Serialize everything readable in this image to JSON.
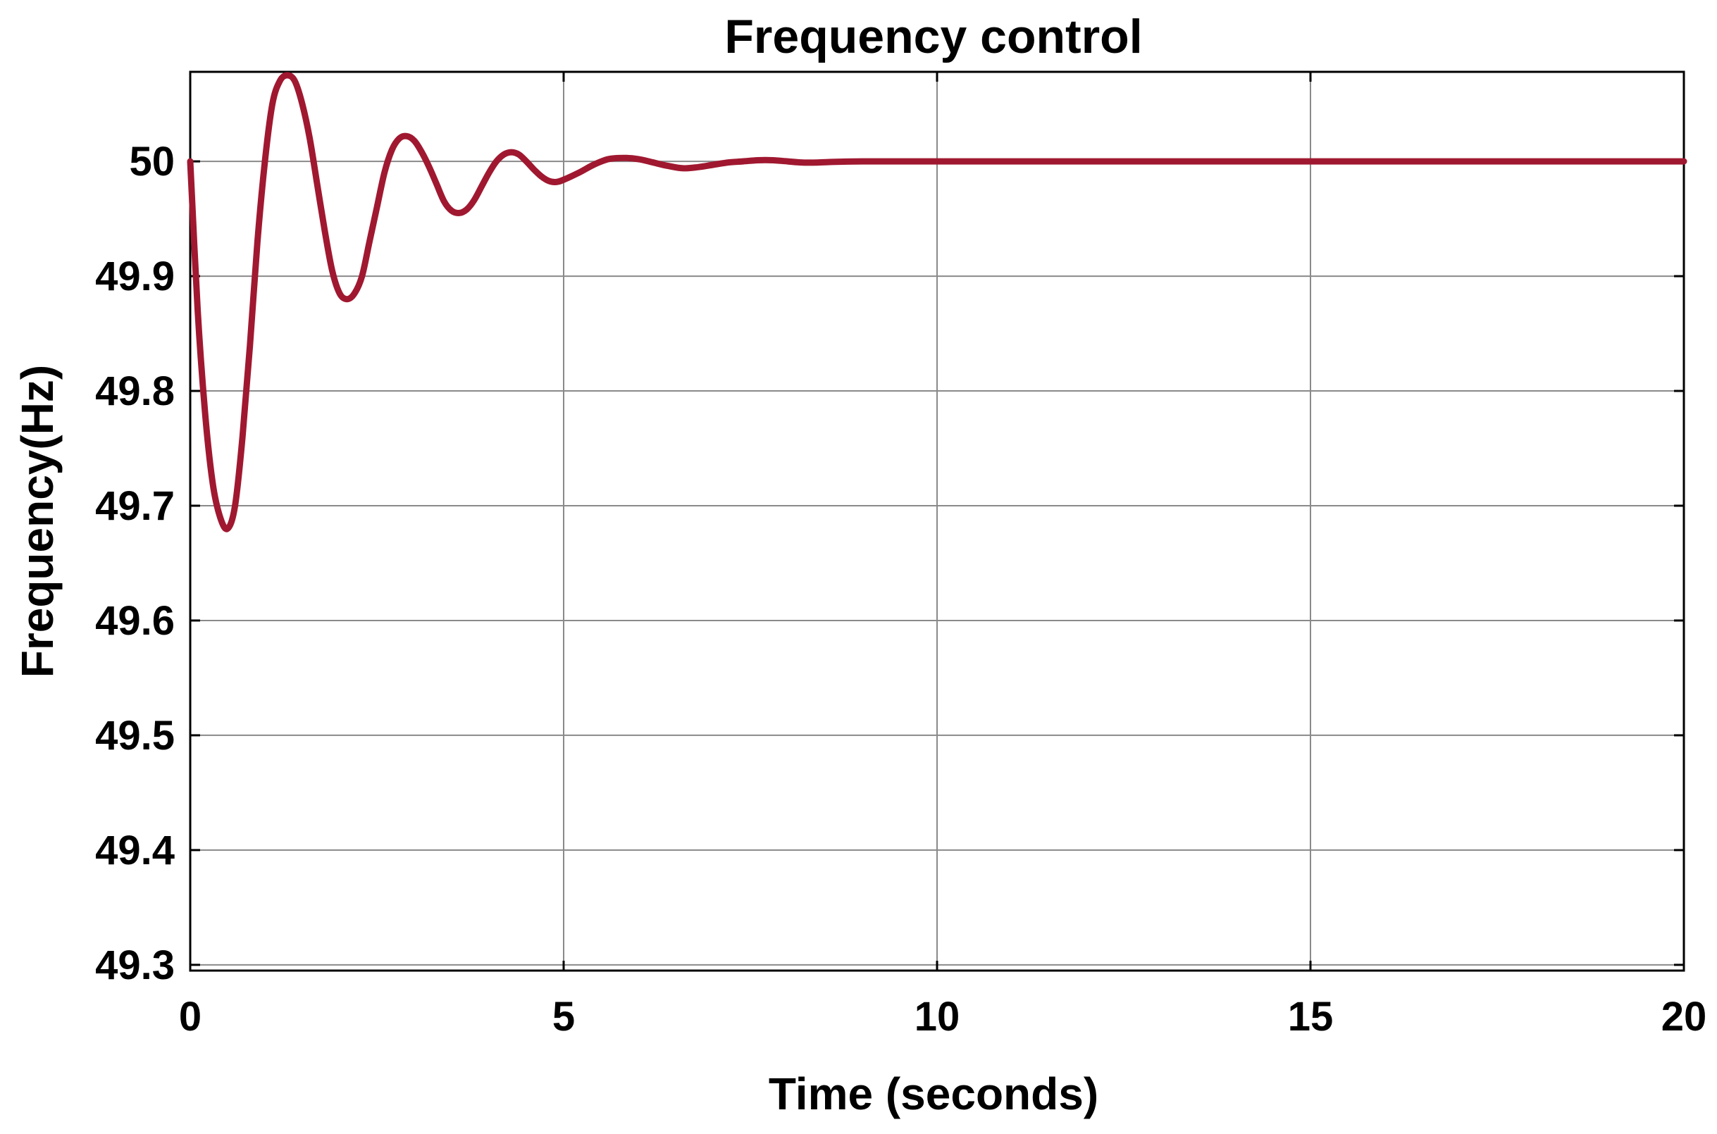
{
  "chart_data": {
    "type": "line",
    "title": "Frequency control",
    "xlabel": "Time (seconds)",
    "ylabel": "Frequency(Hz)",
    "xlim": [
      0,
      20
    ],
    "ylim": [
      49.295,
      50.078
    ],
    "xticks": [
      0,
      5,
      10,
      15,
      20
    ],
    "xtick_labels": [
      "0",
      "5",
      "10",
      "15",
      "20"
    ],
    "yticks": [
      49.3,
      49.4,
      49.5,
      49.6,
      49.7,
      49.8,
      49.9,
      50.0
    ],
    "ytick_labels": [
      "49.3",
      "49.4",
      "49.5",
      "49.6",
      "49.7",
      "49.8",
      "49.9",
      "50"
    ],
    "grid": true,
    "line_color": "#a01830",
    "series": [
      {
        "x": [
          0.0,
          0.1,
          0.2,
          0.3,
          0.4,
          0.5,
          0.6,
          0.7,
          0.8,
          0.9,
          1.0,
          1.1,
          1.2,
          1.3,
          1.4,
          1.5,
          1.6,
          1.7,
          1.8,
          1.9,
          2.0,
          2.1,
          2.2,
          2.3,
          2.4,
          2.5,
          2.6,
          2.7,
          2.8,
          2.9,
          3.0,
          3.1,
          3.2,
          3.3,
          3.4,
          3.5,
          3.6,
          3.7,
          3.8,
          3.9,
          4.0,
          4.1,
          4.2,
          4.3,
          4.4,
          4.5,
          4.6,
          4.7,
          4.8,
          4.9,
          5.0,
          5.2,
          5.4,
          5.6,
          5.8,
          6.0,
          6.2,
          6.4,
          6.6,
          6.8,
          7.0,
          7.2,
          7.4,
          7.6,
          7.8,
          8.0,
          8.2,
          8.4,
          8.6,
          8.8,
          9.0,
          9.2,
          9.4,
          9.6,
          9.8,
          10.0,
          10.5,
          11.0,
          11.5,
          12.0,
          12.5,
          13.0,
          13.5,
          14.0,
          15.0,
          16.0,
          17.0,
          18.0,
          19.0,
          20.0
        ],
        "y": [
          50.0,
          49.87,
          49.78,
          49.72,
          49.69,
          49.68,
          49.7,
          49.76,
          49.84,
          49.93,
          50.0,
          50.05,
          50.07,
          50.075,
          50.07,
          50.05,
          50.02,
          49.98,
          49.94,
          49.905,
          49.885,
          49.88,
          49.885,
          49.9,
          49.93,
          49.96,
          49.99,
          50.01,
          50.02,
          50.022,
          50.018,
          50.008,
          49.995,
          49.98,
          49.965,
          49.957,
          49.955,
          49.958,
          49.966,
          49.978,
          49.99,
          50.0,
          50.006,
          50.008,
          50.006,
          50.0,
          49.993,
          49.987,
          49.983,
          49.982,
          49.984,
          49.99,
          49.997,
          50.002,
          50.003,
          50.002,
          49.999,
          49.996,
          49.994,
          49.995,
          49.997,
          49.999,
          50.0,
          50.001,
          50.001,
          50.0,
          49.999,
          49.999,
          49.9995,
          49.9998,
          50.0,
          50.0,
          50.0,
          50.0,
          50.0,
          50.0,
          50.0,
          50.0,
          50.0,
          50.0,
          50.0,
          50.0,
          50.0,
          50.0,
          50.0,
          50.0,
          50.0,
          50.0,
          50.0,
          50.0
        ]
      }
    ]
  }
}
